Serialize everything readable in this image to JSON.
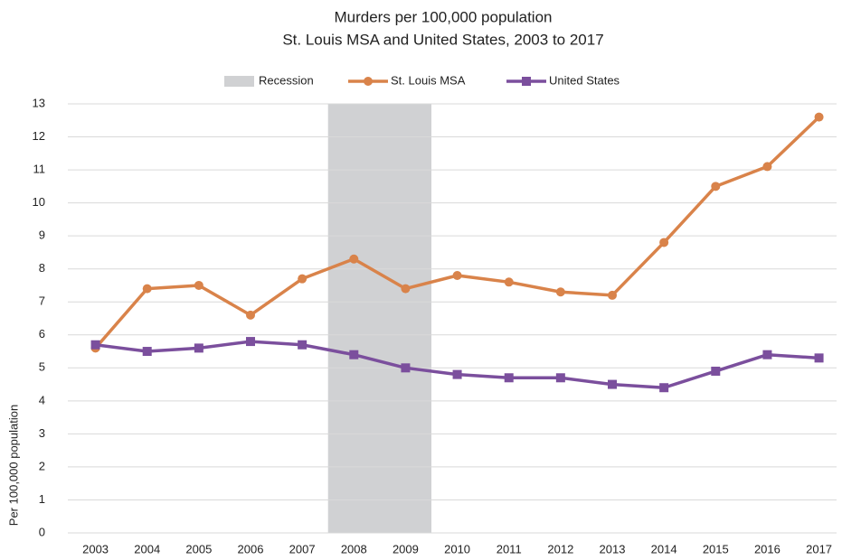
{
  "chart_data": {
    "type": "line",
    "title": "Murders per 100,000 population",
    "subtitle": "St. Louis MSA and United States, 2003 to 2017",
    "y_label": "Per 100,000 population",
    "categories": [
      "2003",
      "2004",
      "2005",
      "2006",
      "2007",
      "2008",
      "2009",
      "2010",
      "2011",
      "2012",
      "2013",
      "2014",
      "2015",
      "2016",
      "2017"
    ],
    "recession": {
      "name": "Recession",
      "start": "2008",
      "end": "2009",
      "color": "#d0d1d3"
    },
    "series": [
      {
        "name": "St. Louis MSA",
        "color": "#d9834a",
        "marker": "circle",
        "values": [
          5.6,
          7.4,
          7.5,
          6.6,
          7.7,
          8.3,
          7.4,
          7.8,
          7.6,
          7.3,
          7.2,
          8.8,
          10.5,
          11.1,
          12.6
        ]
      },
      {
        "name": "United States",
        "color": "#7b4f9d",
        "marker": "square",
        "values": [
          5.7,
          5.5,
          5.6,
          5.8,
          5.7,
          5.4,
          5.0,
          4.8,
          4.7,
          4.7,
          4.5,
          4.4,
          4.9,
          5.4,
          5.3
        ]
      }
    ],
    "ylim": [
      0,
      13
    ],
    "yticks": [
      0,
      1,
      2,
      3,
      4,
      5,
      6,
      7,
      8,
      9,
      10,
      11,
      12,
      13
    ],
    "grid": true,
    "legend": "top"
  }
}
